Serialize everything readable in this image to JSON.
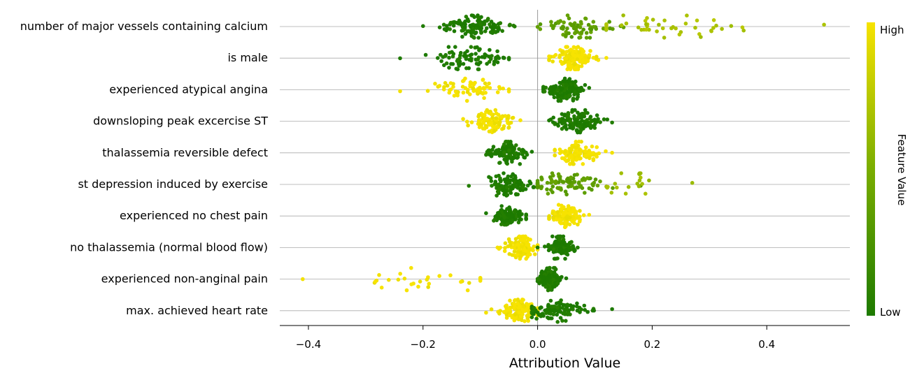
{
  "chart_data": {
    "type": "scatter",
    "subtype": "beeswarm",
    "xlabel": "Attribution Value",
    "xlim": [
      -0.45,
      0.545
    ],
    "xticks": [
      -0.4,
      -0.2,
      0.0,
      0.2,
      0.4
    ],
    "xtick_labels": [
      "−0.4",
      "−0.2",
      "0.0",
      "0.2",
      "0.4"
    ],
    "colorbar": {
      "label": "Feature Value",
      "high": "High",
      "low": "Low",
      "high_color": "#f7e300",
      "low_color": "#1d7a00"
    },
    "gridlines": "horizontal per feature",
    "features": [
      {
        "name": "number of major vessels containing calcium",
        "groups": [
          {
            "value_level": 0.0,
            "min": -0.2,
            "max": -0.04,
            "center": -0.11,
            "n": 120
          },
          {
            "value_level": 0.35,
            "min": 0.0,
            "max": 0.15,
            "center": 0.07,
            "n": 70
          },
          {
            "value_level": 0.7,
            "min": 0.12,
            "max": 0.5,
            "center": 0.22,
            "n": 45
          }
        ]
      },
      {
        "name": "is male",
        "groups": [
          {
            "value_level": 0.0,
            "min": -0.24,
            "max": -0.05,
            "center": -0.12,
            "n": 85
          },
          {
            "value_level": 1.0,
            "min": 0.02,
            "max": 0.12,
            "center": 0.06,
            "n": 160
          }
        ]
      },
      {
        "name": "experienced atypical angina",
        "groups": [
          {
            "value_level": 1.0,
            "min": -0.24,
            "max": -0.05,
            "center": -0.12,
            "n": 70
          },
          {
            "value_level": 0.0,
            "min": 0.01,
            "max": 0.09,
            "center": 0.05,
            "n": 170
          }
        ]
      },
      {
        "name": "downsloping peak excercise ST",
        "groups": [
          {
            "value_level": 1.0,
            "min": -0.13,
            "max": -0.03,
            "center": -0.08,
            "n": 110
          },
          {
            "value_level": 0.0,
            "min": 0.02,
            "max": 0.13,
            "center": 0.07,
            "n": 130
          }
        ]
      },
      {
        "name": "thalassemia reversible defect",
        "groups": [
          {
            "value_level": 0.0,
            "min": -0.09,
            "max": -0.01,
            "center": -0.05,
            "n": 130
          },
          {
            "value_level": 1.0,
            "min": 0.03,
            "max": 0.13,
            "center": 0.07,
            "n": 110
          }
        ]
      },
      {
        "name": "st depression induced by exercise",
        "groups": [
          {
            "value_level": 0.0,
            "min": -0.12,
            "max": 0.0,
            "center": -0.05,
            "n": 110
          },
          {
            "value_level": 0.35,
            "min": 0.0,
            "max": 0.18,
            "center": 0.05,
            "n": 90
          },
          {
            "value_level": 0.65,
            "min": 0.12,
            "max": 0.27,
            "center": 0.17,
            "n": 20
          }
        ]
      },
      {
        "name": "experienced no chest pain",
        "groups": [
          {
            "value_level": 0.0,
            "min": -0.09,
            "max": -0.02,
            "center": -0.05,
            "n": 120
          },
          {
            "value_level": 1.0,
            "min": 0.02,
            "max": 0.09,
            "center": 0.05,
            "n": 120
          }
        ]
      },
      {
        "name": "no thalassemia (normal blood flow)",
        "groups": [
          {
            "value_level": 1.0,
            "min": -0.07,
            "max": 0.0,
            "center": -0.03,
            "n": 120
          },
          {
            "value_level": 0.0,
            "min": 0.0,
            "max": 0.07,
            "center": 0.04,
            "n": 110
          }
        ]
      },
      {
        "name": "experienced non-anginal pain",
        "groups": [
          {
            "value_level": 1.0,
            "min": -0.41,
            "max": -0.1,
            "center": -0.2,
            "n": 30
          },
          {
            "value_level": 0.0,
            "min": 0.0,
            "max": 0.05,
            "center": 0.02,
            "n": 180
          }
        ]
      },
      {
        "name": "max. achieved heart rate",
        "groups": [
          {
            "value_level": 1.0,
            "min": -0.09,
            "max": 0.0,
            "center": -0.03,
            "n": 130
          },
          {
            "value_level": 0.0,
            "min": -0.01,
            "max": 0.13,
            "center": 0.03,
            "n": 110
          }
        ]
      }
    ]
  }
}
